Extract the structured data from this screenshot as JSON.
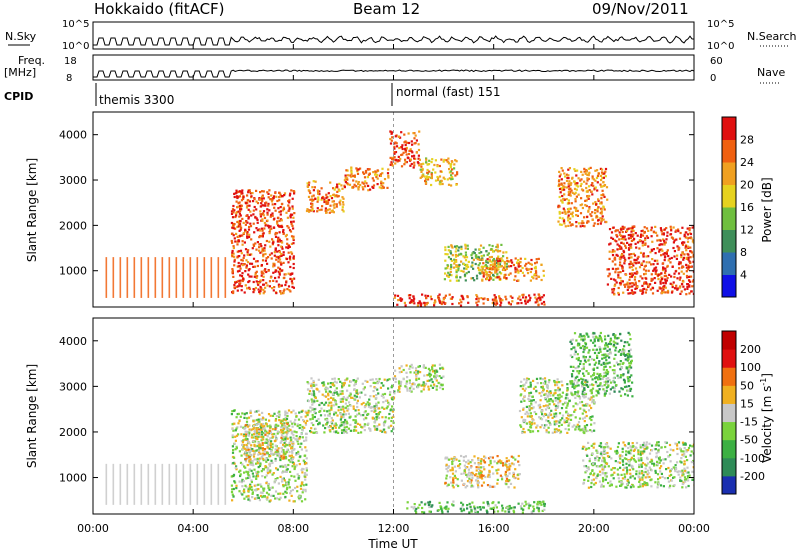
{
  "header": {
    "station": "Hokkaido (fitACF)",
    "beam": "Beam 12",
    "date": "09/Nov/2011"
  },
  "top_panels": {
    "nsky_label": "N.Sky",
    "nsky_ticks": [
      "10^5",
      "10^0"
    ],
    "nsearch_label": "N.Search",
    "nsearch_ticks": [
      "10^5",
      "10^0"
    ],
    "freq_label": "Freq.",
    "freq_unit": "[MHz]",
    "freq_ticks": [
      "18",
      "8"
    ],
    "nave_label": "Nave",
    "nave_ticks": [
      "60",
      "0"
    ],
    "cpid_label": "CPID",
    "cpid_segments": [
      {
        "name": "themis 3300",
        "start_hour": 0.0,
        "end_hour": 12.0
      },
      {
        "name": "normal (fast) 151",
        "start_hour": 12.0,
        "end_hour": 24.0
      }
    ]
  },
  "axes": {
    "xlabel": "Time UT",
    "x_ticks": [
      "00:00",
      "04:00",
      "08:00",
      "12:00",
      "16:00",
      "20:00",
      "00:00"
    ],
    "ylabel": "Slant Range [km]",
    "y_ticks": [
      "1000",
      "2000",
      "3000",
      "4000"
    ]
  },
  "colorbars": {
    "power": {
      "label": "Power [dB]",
      "ticks": [
        "4",
        "8",
        "12",
        "16",
        "20",
        "24",
        "28"
      ],
      "colors": [
        "#1010e6",
        "#2f6fb0",
        "#3f8f5a",
        "#6fbf3f",
        "#e6d21f",
        "#f0a020",
        "#f06010",
        "#e01010"
      ]
    },
    "velocity": {
      "label": "Velocity [m s",
      "label_sup": "-1",
      "label_end": "]",
      "ticks": [
        "200",
        "100",
        "50",
        "15",
        "-15",
        "-50",
        "-100",
        "-200"
      ],
      "colors": [
        "#1a2fb0",
        "#2e8b57",
        "#3cb043",
        "#7ad33c",
        "#c8c8c8",
        "#f0b020",
        "#f07010",
        "#e01010",
        "#c00000"
      ]
    }
  },
  "chart_data": [
    {
      "type": "heatmap",
      "title": "Power",
      "x_unit": "hours UT",
      "xlim": [
        0,
        24
      ],
      "ylim": [
        200,
        4500
      ],
      "ylabel": "Slant Range [km]",
      "regions": [
        {
          "t0": 0.5,
          "t1": 5.5,
          "r0": 400,
          "r1": 1300,
          "level": 6,
          "pattern": "stripes"
        },
        {
          "t0": 5.5,
          "t1": 8.0,
          "r0": 500,
          "r1": 2800,
          "level": 7
        },
        {
          "t0": 8.5,
          "t1": 10.0,
          "r0": 2300,
          "r1": 3000,
          "level": 6
        },
        {
          "t0": 10.0,
          "t1": 11.8,
          "r0": 2800,
          "r1": 3300,
          "level": 6
        },
        {
          "t0": 11.8,
          "t1": 13.0,
          "r0": 3300,
          "r1": 4100,
          "level": 7
        },
        {
          "t0": 13.0,
          "t1": 14.5,
          "r0": 2900,
          "r1": 3500,
          "level": 5
        },
        {
          "t0": 14.0,
          "t1": 16.5,
          "r0": 800,
          "r1": 1600,
          "level": 4
        },
        {
          "t0": 15.5,
          "t1": 18.0,
          "r0": 800,
          "r1": 1300,
          "level": 6
        },
        {
          "t0": 18.5,
          "t1": 20.5,
          "r0": 2000,
          "r1": 3300,
          "level": 6
        },
        {
          "t0": 20.5,
          "t1": 24.0,
          "r0": 500,
          "r1": 2000,
          "level": 7
        },
        {
          "t0": 12.0,
          "t1": 18.0,
          "r0": 250,
          "r1": 500,
          "level": 7
        }
      ]
    },
    {
      "type": "heatmap",
      "title": "Velocity",
      "x_unit": "hours UT",
      "xlim": [
        0,
        24
      ],
      "ylim": [
        200,
        4500
      ],
      "ylabel": "Slant Range [km]",
      "regions": [
        {
          "t0": 0.5,
          "t1": 5.5,
          "r0": 400,
          "r1": 1300,
          "level": 4,
          "pattern": "stripes"
        },
        {
          "t0": 5.5,
          "t1": 8.5,
          "r0": 500,
          "r1": 2500,
          "level": 4
        },
        {
          "t0": 6.0,
          "t1": 8.0,
          "r0": 1400,
          "r1": 2200,
          "level": 5
        },
        {
          "t0": 8.5,
          "t1": 12.0,
          "r0": 2000,
          "r1": 3200,
          "level": 4
        },
        {
          "t0": 12.0,
          "t1": 14.0,
          "r0": 2900,
          "r1": 3500,
          "level": 4
        },
        {
          "t0": 14.0,
          "t1": 17.0,
          "r0": 800,
          "r1": 1500,
          "level": 5
        },
        {
          "t0": 17.0,
          "t1": 20.0,
          "r0": 2000,
          "r1": 3200,
          "level": 4
        },
        {
          "t0": 19.5,
          "t1": 24.0,
          "r0": 800,
          "r1": 1800,
          "level": 4
        },
        {
          "t0": 19.0,
          "t1": 21.5,
          "r0": 2800,
          "r1": 4200,
          "level": 3
        },
        {
          "t0": 12.5,
          "t1": 18.0,
          "r0": 250,
          "r1": 500,
          "level": 3
        }
      ]
    }
  ]
}
